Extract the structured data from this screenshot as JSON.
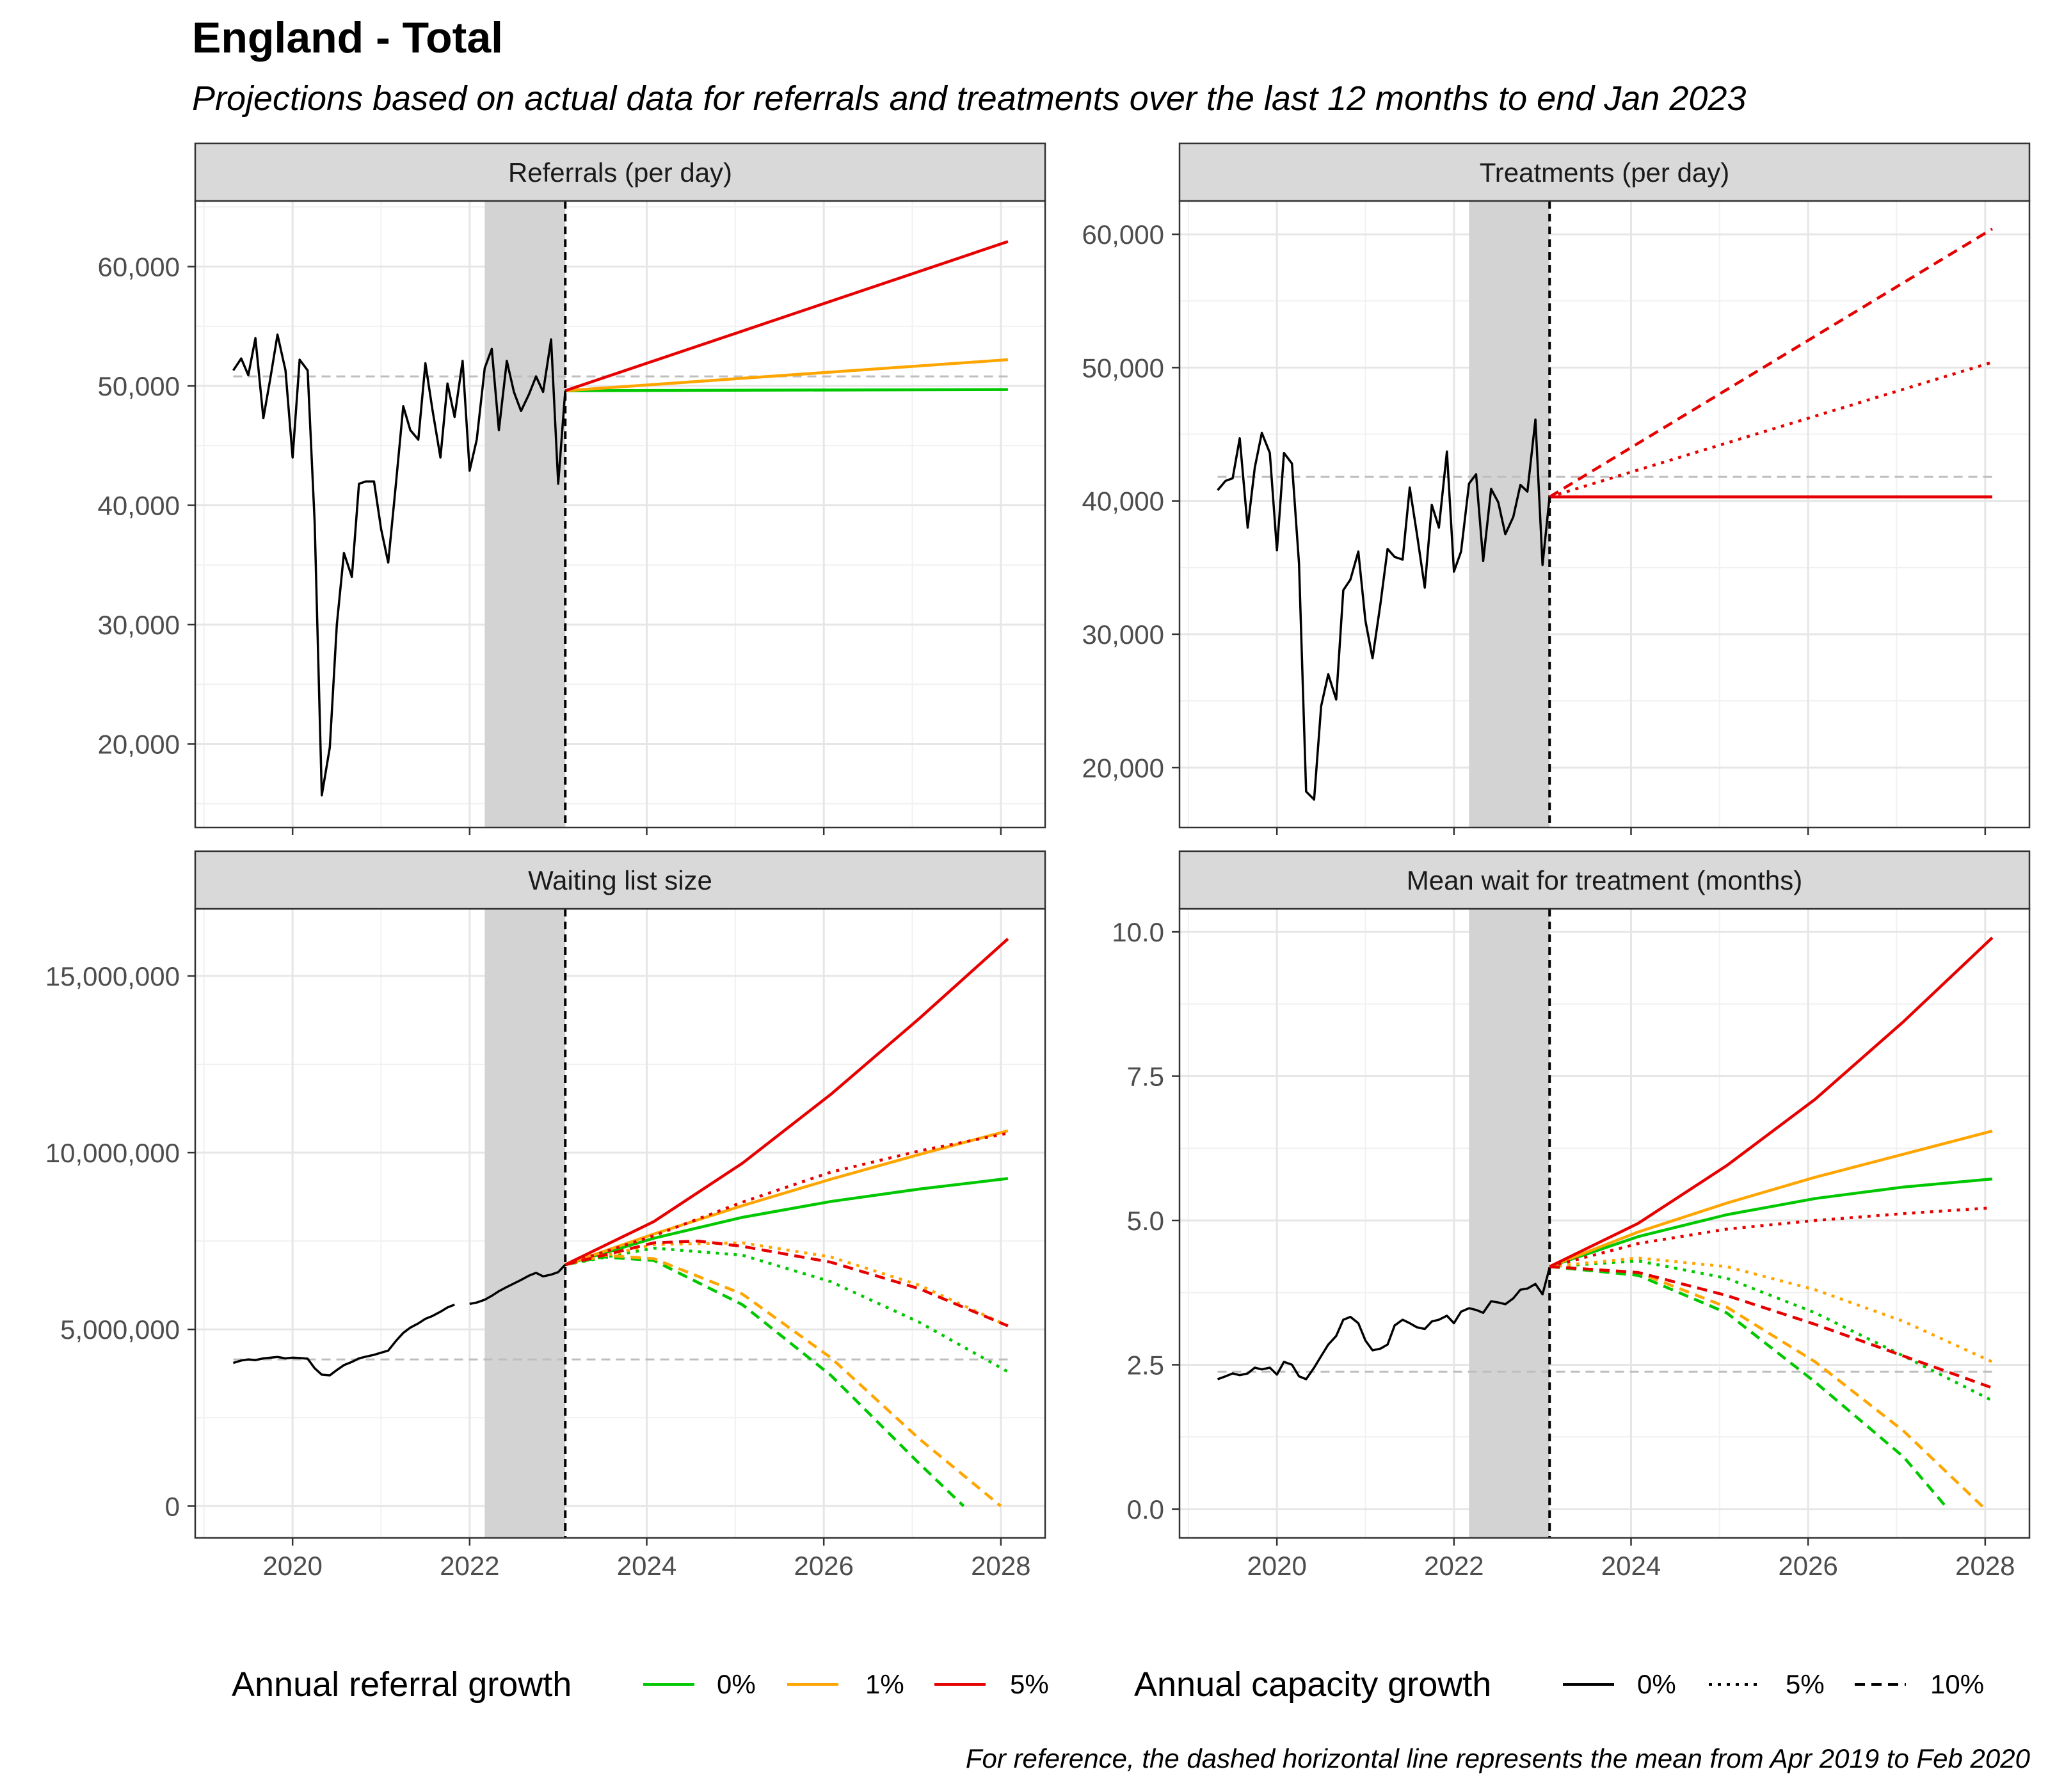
{
  "title": "England - Total",
  "subtitle": "Projections based on actual data for referrals and treatments over the last 12 months to end Jan 2023",
  "caption": "For reference, the dashed horizontal line represents the mean from Apr 2019 to Feb 2020",
  "legend": {
    "referral_title": "Annual referral growth",
    "referral_items": [
      {
        "label": "0%",
        "color": "#00c800"
      },
      {
        "label": "1%",
        "color": "#ffa500"
      },
      {
        "label": "5%",
        "color": "#e60000"
      }
    ],
    "capacity_title": "Annual capacity growth",
    "capacity_items": [
      {
        "label": "0%",
        "dash": "solid"
      },
      {
        "label": "5%",
        "dash": "dotted"
      },
      {
        "label": "10%",
        "dash": "dashed"
      }
    ]
  },
  "colors": {
    "g0": "#00c800",
    "g1": "#ffa500",
    "g5": "#e60000",
    "actual": "#000000",
    "reference_mean": "#bebebe",
    "shade": "#d3d3d3",
    "strip": "#d9d9d9"
  },
  "chart_data": [
    {
      "id": "referrals",
      "type": "line",
      "strip": "Referrals (per day)",
      "xlim": [
        2018.9,
        2028.5
      ],
      "ylim": [
        13000,
        65500
      ],
      "x_ticks": [
        2020,
        2022,
        2024,
        2026,
        2028
      ],
      "y_ticks": [
        20000,
        30000,
        40000,
        50000,
        60000
      ],
      "y_tick_labels": [
        "20,000",
        "30,000",
        "40,000",
        "50,000",
        "60,000"
      ],
      "x_tick_labels_shown": false,
      "shaded_period": [
        2022.17,
        2023.08
      ],
      "vline": 2023.08,
      "reference_mean": 50800,
      "actual": {
        "x": [
          2019.33,
          2019.42,
          2019.5,
          2019.58,
          2019.67,
          2019.75,
          2019.83,
          2019.92,
          2020.0,
          2020.08,
          2020.17,
          2020.25,
          2020.33,
          2020.42,
          2020.5,
          2020.58,
          2020.67,
          2020.75,
          2020.83,
          2020.92,
          2021.0,
          2021.08,
          2021.17,
          2021.25,
          2021.33,
          2021.42,
          2021.5,
          2021.58,
          2021.67,
          2021.75,
          2021.83,
          2021.92,
          2022.0,
          2022.08,
          2022.17,
          2022.25,
          2022.33,
          2022.42,
          2022.5,
          2022.58,
          2022.67,
          2022.75,
          2022.83,
          2022.92,
          2023.0,
          2023.08
        ],
        "y": [
          51300,
          52300,
          50900,
          54000,
          47300,
          50700,
          54300,
          51300,
          44000,
          52200,
          51300,
          38500,
          15700,
          19700,
          30000,
          36000,
          34000,
          41800,
          42000,
          42000,
          38000,
          35200,
          42000,
          48300,
          46300,
          45500,
          51900,
          48000,
          44000,
          50200,
          47400,
          52100,
          42900,
          45500,
          51500,
          53100,
          46300,
          52100,
          49500,
          47900,
          49300,
          50800,
          49500,
          53900,
          41800,
          49600
        ]
      },
      "series": [
        {
          "name": "0%",
          "growth": "0%",
          "capacity": "0%",
          "x": [
            2023.08,
            2028.08
          ],
          "y": [
            49600,
            49700
          ]
        },
        {
          "name": "1%",
          "growth": "1%",
          "capacity": "0%",
          "x": [
            2023.08,
            2028.08
          ],
          "y": [
            49600,
            52200
          ]
        },
        {
          "name": "5%",
          "growth": "5%",
          "capacity": "0%",
          "x": [
            2023.08,
            2028.08
          ],
          "y": [
            49600,
            62100
          ]
        }
      ]
    },
    {
      "id": "treatments",
      "type": "line",
      "strip": "Treatments (per day)",
      "xlim": [
        2018.9,
        2028.5
      ],
      "ylim": [
        15500,
        62500
      ],
      "x_ticks": [
        2020,
        2022,
        2024,
        2026,
        2028
      ],
      "y_ticks": [
        20000,
        30000,
        40000,
        50000,
        60000
      ],
      "y_tick_labels": [
        "20,000",
        "30,000",
        "40,000",
        "50,000",
        "60,000"
      ],
      "x_tick_labels_shown": false,
      "shaded_period": [
        2022.17,
        2023.08
      ],
      "vline": 2023.08,
      "reference_mean": 41800,
      "actual": {
        "x": [
          2019.33,
          2019.42,
          2019.5,
          2019.58,
          2019.67,
          2019.75,
          2019.83,
          2019.92,
          2020.0,
          2020.08,
          2020.17,
          2020.25,
          2020.33,
          2020.42,
          2020.5,
          2020.58,
          2020.67,
          2020.75,
          2020.83,
          2020.92,
          2021.0,
          2021.08,
          2021.17,
          2021.25,
          2021.33,
          2021.42,
          2021.5,
          2021.58,
          2021.67,
          2021.75,
          2021.83,
          2021.92,
          2022.0,
          2022.08,
          2022.17,
          2022.25,
          2022.33,
          2022.42,
          2022.5,
          2022.58,
          2022.67,
          2022.75,
          2022.83,
          2022.92,
          2023.0,
          2023.08
        ],
        "y": [
          40800,
          41500,
          41700,
          44700,
          38000,
          42500,
          45100,
          43600,
          36300,
          43600,
          42800,
          35300,
          18200,
          17600,
          24600,
          27000,
          25100,
          33300,
          34100,
          36200,
          31000,
          28200,
          32300,
          36400,
          35800,
          35600,
          41000,
          37600,
          33500,
          39700,
          38000,
          43700,
          34700,
          36200,
          41300,
          42000,
          35500,
          40900,
          39900,
          37500,
          38800,
          41200,
          40700,
          46100,
          35200,
          40300
        ]
      },
      "series": [
        {
          "name": "0%",
          "growth": "5%",
          "capacity": "0%",
          "x": [
            2023.08,
            2028.08
          ],
          "y": [
            40300,
            40300
          ]
        },
        {
          "name": "5%",
          "growth": "5%",
          "capacity": "5%",
          "x": [
            2023.08,
            2028.08
          ],
          "y": [
            40300,
            50400
          ]
        },
        {
          "name": "10%",
          "growth": "5%",
          "capacity": "10%",
          "x": [
            2023.08,
            2028.08
          ],
          "y": [
            40300,
            60400
          ]
        }
      ]
    },
    {
      "id": "waiting_list",
      "type": "line",
      "strip": "Waiting list size",
      "xlim": [
        2018.9,
        2028.5
      ],
      "ylim": [
        -900000,
        16900000
      ],
      "x_ticks": [
        2020,
        2022,
        2024,
        2026,
        2028
      ],
      "x_tick_labels": [
        "2020",
        "2022",
        "2024",
        "2026",
        "2028"
      ],
      "y_ticks": [
        0,
        5000000,
        10000000,
        15000000
      ],
      "y_tick_labels": [
        "0",
        "5,000,000",
        "10,000,000",
        "15,000,000"
      ],
      "x_tick_labels_shown": true,
      "shaded_period": [
        2022.17,
        2023.08
      ],
      "vline": 2023.08,
      "reference_mean": 4150000,
      "actual_segments": [
        {
          "x": [
            2019.33,
            2019.42,
            2019.5,
            2019.58,
            2019.67,
            2019.75,
            2019.83,
            2019.92,
            2020.0,
            2020.08,
            2020.17,
            2020.25,
            2020.33,
            2020.42,
            2020.5,
            2020.58,
            2020.67,
            2020.75,
            2020.83,
            2020.92,
            2021.0,
            2021.08,
            2021.17,
            2021.25,
            2021.33,
            2021.42,
            2021.5,
            2021.58,
            2021.67,
            2021.75,
            2021.83
          ],
          "y": [
            4050000,
            4120000,
            4150000,
            4130000,
            4180000,
            4200000,
            4220000,
            4180000,
            4200000,
            4190000,
            4170000,
            3900000,
            3720000,
            3700000,
            3850000,
            3990000,
            4080000,
            4180000,
            4230000,
            4280000,
            4340000,
            4400000,
            4680000,
            4900000,
            5050000,
            5170000,
            5300000,
            5380000,
            5500000,
            5620000,
            5700000
          ]
        },
        {
          "x": [
            2022.0,
            2022.08,
            2022.17,
            2022.25,
            2022.33,
            2022.42,
            2022.5,
            2022.58,
            2022.67,
            2022.75,
            2022.83,
            2022.92,
            2023.0,
            2023.08
          ],
          "y": [
            5720000,
            5760000,
            5840000,
            5950000,
            6080000,
            6200000,
            6300000,
            6400000,
            6520000,
            6600000,
            6500000,
            6550000,
            6620000,
            6830000
          ]
        }
      ],
      "series": [
        {
          "name": "0%",
          "growth": "0%",
          "capacity": "0%",
          "x": [
            2023.08,
            2024.08,
            2025.08,
            2026.08,
            2027.08,
            2028.08
          ],
          "y": [
            6830000,
            7580000,
            8170000,
            8620000,
            8970000,
            9270000
          ]
        },
        {
          "name": "1%",
          "growth": "1%",
          "capacity": "0%",
          "x": [
            2023.08,
            2024.08,
            2025.08,
            2026.08,
            2027.08,
            2028.08
          ],
          "y": [
            6830000,
            7700000,
            8500000,
            9250000,
            9950000,
            10620000
          ]
        },
        {
          "name": "5%",
          "growth": "5%",
          "capacity": "0%",
          "x": [
            2023.08,
            2024.08,
            2025.08,
            2026.08,
            2027.08,
            2028.08
          ],
          "y": [
            6830000,
            8050000,
            9700000,
            11650000,
            13800000,
            16050000
          ]
        },
        {
          "name": "0%",
          "growth": "0%",
          "capacity": "5%",
          "x": [
            2023.08,
            2024.08,
            2025.08,
            2026.08,
            2027.08,
            2028.08
          ],
          "y": [
            6830000,
            7300000,
            7100000,
            6350000,
            5200000,
            3800000
          ]
        },
        {
          "name": "1%",
          "growth": "1%",
          "capacity": "5%",
          "x": [
            2023.08,
            2024.08,
            2025.08,
            2026.08,
            2027.08,
            2028.08
          ],
          "y": [
            6830000,
            7400000,
            7450000,
            7050000,
            6250000,
            5100000
          ]
        },
        {
          "name": "5%",
          "growth": "5%",
          "capacity": "5%",
          "x": [
            2023.08,
            2024.08,
            2025.08,
            2026.08,
            2027.08,
            2028.08
          ],
          "y": [
            6830000,
            7650000,
            8600000,
            9450000,
            10050000,
            10550000
          ]
        },
        {
          "name": "0%",
          "growth": "0%",
          "capacity": "10%",
          "x": [
            2023.08,
            2023.5,
            2024.08,
            2025.08,
            2026.08,
            2027.08,
            2027.58
          ],
          "y": [
            6830000,
            7050000,
            6950000,
            5700000,
            3700000,
            1200000,
            0
          ]
        },
        {
          "name": "1%",
          "growth": "1%",
          "capacity": "10%",
          "x": [
            2023.08,
            2023.5,
            2024.08,
            2025.08,
            2026.08,
            2027.08,
            2028.0
          ],
          "y": [
            6830000,
            7100000,
            7000000,
            6000000,
            4200000,
            1900000,
            0
          ]
        },
        {
          "name": "5%",
          "growth": "5%",
          "capacity": "10%",
          "x": [
            2023.08,
            2024.08,
            2024.58,
            2025.08,
            2026.08,
            2027.08,
            2028.08
          ],
          "y": [
            6830000,
            7450000,
            7500000,
            7350000,
            6900000,
            6150000,
            5100000
          ]
        }
      ]
    },
    {
      "id": "mean_wait",
      "type": "line",
      "strip": "Mean wait for treatment (months)",
      "xlim": [
        2018.9,
        2028.5
      ],
      "ylim": [
        -0.5,
        10.4
      ],
      "x_ticks": [
        2020,
        2022,
        2024,
        2026,
        2028
      ],
      "x_tick_labels": [
        "2020",
        "2022",
        "2024",
        "2026",
        "2028"
      ],
      "y_ticks": [
        0,
        2.5,
        5,
        7.5,
        10
      ],
      "y_tick_labels": [
        "0.0",
        "2.5",
        "5.0",
        "7.5",
        "10.0"
      ],
      "x_tick_labels_shown": true,
      "shaded_period": [
        2022.17,
        2023.08
      ],
      "vline": 2023.08,
      "reference_mean": 2.38,
      "actual": {
        "x": [
          2019.33,
          2019.42,
          2019.5,
          2019.58,
          2019.67,
          2019.75,
          2019.83,
          2019.92,
          2020.0,
          2020.08,
          2020.17,
          2020.25,
          2020.33,
          2020.42,
          2020.5,
          2020.58,
          2020.67,
          2020.75,
          2020.83,
          2020.92,
          2021.0,
          2021.08,
          2021.17,
          2021.25,
          2021.33,
          2021.42,
          2021.5,
          2021.58,
          2021.67,
          2021.75,
          2021.83,
          2021.92,
          2022.0,
          2022.08,
          2022.17,
          2022.25,
          2022.33,
          2022.42,
          2022.5,
          2022.58,
          2022.67,
          2022.75,
          2022.83,
          2022.92,
          2023.0,
          2023.08
        ],
        "y": [
          2.25,
          2.3,
          2.35,
          2.32,
          2.35,
          2.45,
          2.42,
          2.45,
          2.33,
          2.55,
          2.5,
          2.3,
          2.25,
          2.45,
          2.65,
          2.85,
          3.0,
          3.28,
          3.33,
          3.22,
          2.92,
          2.75,
          2.78,
          2.85,
          3.18,
          3.28,
          3.22,
          3.15,
          3.12,
          3.25,
          3.28,
          3.35,
          3.22,
          3.42,
          3.48,
          3.45,
          3.4,
          3.6,
          3.58,
          3.55,
          3.65,
          3.8,
          3.82,
          3.9,
          3.72,
          4.18
        ]
      },
      "series": [
        {
          "name": "0%",
          "growth": "0%",
          "capacity": "0%",
          "x": [
            2023.08,
            2024.08,
            2025.08,
            2026.08,
            2027.08,
            2028.08
          ],
          "y": [
            4.2,
            4.72,
            5.1,
            5.38,
            5.58,
            5.72
          ]
        },
        {
          "name": "1%",
          "growth": "1%",
          "capacity": "0%",
          "x": [
            2023.08,
            2024.08,
            2025.08,
            2026.08,
            2027.08,
            2028.08
          ],
          "y": [
            4.2,
            4.8,
            5.3,
            5.75,
            6.15,
            6.55
          ]
        },
        {
          "name": "5%",
          "growth": "5%",
          "capacity": "0%",
          "x": [
            2023.08,
            2024.08,
            2025.08,
            2026.08,
            2027.08,
            2028.08
          ],
          "y": [
            4.2,
            4.95,
            5.95,
            7.1,
            8.45,
            9.9
          ]
        },
        {
          "name": "0%",
          "growth": "0%",
          "capacity": "5%",
          "x": [
            2023.08,
            2024.08,
            2025.08,
            2026.08,
            2027.08,
            2028.08
          ],
          "y": [
            4.2,
            4.3,
            4.0,
            3.4,
            2.65,
            1.88
          ]
        },
        {
          "name": "1%",
          "growth": "1%",
          "capacity": "5%",
          "x": [
            2023.08,
            2024.08,
            2025.08,
            2026.08,
            2027.08,
            2028.08
          ],
          "y": [
            4.2,
            4.35,
            4.2,
            3.8,
            3.25,
            2.55
          ]
        },
        {
          "name": "5%",
          "growth": "5%",
          "capacity": "5%",
          "x": [
            2023.08,
            2024.08,
            2025.08,
            2026.08,
            2027.08,
            2028.08
          ],
          "y": [
            4.2,
            4.6,
            4.85,
            5.0,
            5.12,
            5.22
          ]
        },
        {
          "name": "0%",
          "growth": "0%",
          "capacity": "10%",
          "x": [
            2023.08,
            2024.08,
            2025.08,
            2026.08,
            2027.08,
            2027.58
          ],
          "y": [
            4.2,
            4.05,
            3.4,
            2.2,
            0.9,
            0.0
          ]
        },
        {
          "name": "1%",
          "growth": "1%",
          "capacity": "10%",
          "x": [
            2023.08,
            2024.08,
            2025.08,
            2026.08,
            2027.08,
            2028.0
          ],
          "y": [
            4.2,
            4.1,
            3.5,
            2.55,
            1.35,
            0.0
          ]
        },
        {
          "name": "5%",
          "growth": "5%",
          "capacity": "10%",
          "x": [
            2023.08,
            2024.08,
            2025.08,
            2026.08,
            2027.08,
            2028.08
          ],
          "y": [
            4.2,
            4.1,
            3.7,
            3.2,
            2.65,
            2.1
          ]
        }
      ]
    }
  ]
}
